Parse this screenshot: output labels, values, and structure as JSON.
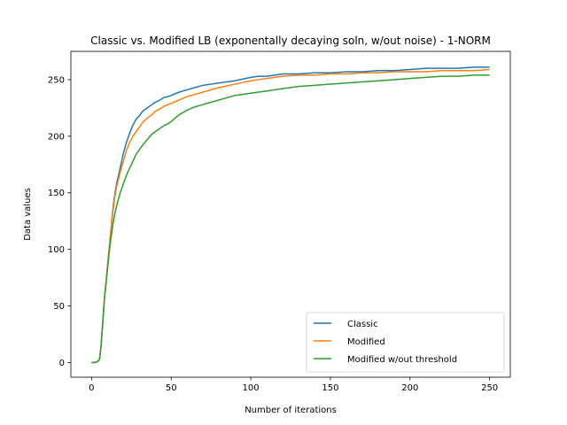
{
  "chart_data": {
    "type": "line",
    "title": "Classic vs. Modified LB (exponentally decaying soln, w/out noise) - 1-NORM",
    "xlabel": "Number of iterations",
    "ylabel": "Data values",
    "xlim": [
      -13,
      263
    ],
    "ylim": [
      -13,
      275
    ],
    "xticks": [
      0,
      50,
      100,
      150,
      200,
      250
    ],
    "yticks": [
      0,
      50,
      100,
      150,
      200,
      250
    ],
    "grid": false,
    "legend_position": "lower-right",
    "series": [
      {
        "name": "Classic",
        "color": "#1f77b4",
        "x": [
          0,
          2,
          4,
          5,
          6,
          7,
          8,
          9,
          10,
          11,
          12,
          13,
          14,
          15,
          16,
          18,
          20,
          22,
          24,
          26,
          28,
          30,
          32,
          35,
          38,
          40,
          43,
          45,
          48,
          50,
          55,
          60,
          65,
          70,
          75,
          80,
          90,
          100,
          105,
          110,
          115,
          120,
          130,
          140,
          150,
          160,
          170,
          180,
          190,
          200,
          210,
          220,
          230,
          240,
          250
        ],
        "y": [
          0,
          0,
          1,
          3,
          15,
          35,
          55,
          70,
          85,
          100,
          115,
          130,
          143,
          152,
          160,
          172,
          185,
          195,
          203,
          210,
          215,
          218,
          222,
          225,
          228,
          230,
          232,
          234,
          235,
          236,
          239,
          241,
          243,
          245,
          246,
          247,
          249,
          252,
          253,
          253,
          254,
          255,
          255,
          256,
          256,
          257,
          257,
          258,
          258,
          259,
          260,
          260,
          260,
          261,
          261
        ]
      },
      {
        "name": "Modified",
        "color": "#ff7f0e",
        "x": [
          0,
          2,
          4,
          5,
          6,
          7,
          8,
          9,
          10,
          11,
          12,
          13,
          14,
          15,
          16,
          18,
          20,
          22,
          24,
          26,
          28,
          30,
          32,
          35,
          38,
          40,
          43,
          45,
          48,
          50,
          55,
          60,
          65,
          70,
          75,
          80,
          90,
          100,
          105,
          110,
          115,
          120,
          130,
          140,
          150,
          160,
          170,
          180,
          190,
          200,
          210,
          220,
          230,
          240,
          250
        ],
        "y": [
          0,
          0,
          1,
          3,
          15,
          35,
          55,
          70,
          85,
          100,
          115,
          128,
          140,
          150,
          157,
          168,
          178,
          188,
          195,
          200,
          204,
          208,
          212,
          216,
          219,
          222,
          224,
          226,
          228,
          229,
          232,
          235,
          237,
          239,
          241,
          243,
          246,
          249,
          250,
          251,
          252,
          253,
          254,
          254,
          255,
          255,
          256,
          256,
          257,
          257,
          257,
          258,
          258,
          258,
          259
        ]
      },
      {
        "name": "Modified w/out threshold",
        "color": "#2ca02c",
        "x": [
          0,
          2,
          4,
          5,
          6,
          7,
          8,
          9,
          10,
          11,
          12,
          13,
          14,
          15,
          16,
          18,
          20,
          22,
          24,
          26,
          28,
          30,
          32,
          35,
          38,
          40,
          43,
          45,
          48,
          50,
          55,
          60,
          65,
          70,
          75,
          80,
          90,
          100,
          105,
          110,
          115,
          120,
          130,
          140,
          150,
          160,
          170,
          180,
          190,
          200,
          210,
          220,
          230,
          240,
          250
        ],
        "y": [
          0,
          0,
          1,
          3,
          15,
          35,
          55,
          68,
          82,
          96,
          108,
          118,
          127,
          134,
          140,
          150,
          158,
          166,
          172,
          178,
          184,
          188,
          192,
          197,
          202,
          204,
          207,
          209,
          211,
          213,
          219,
          223,
          226,
          228,
          230,
          232,
          236,
          238,
          239,
          240,
          241,
          242,
          244,
          245,
          246,
          247,
          248,
          249,
          250,
          251,
          252,
          253,
          253,
          254,
          254
        ]
      }
    ]
  }
}
